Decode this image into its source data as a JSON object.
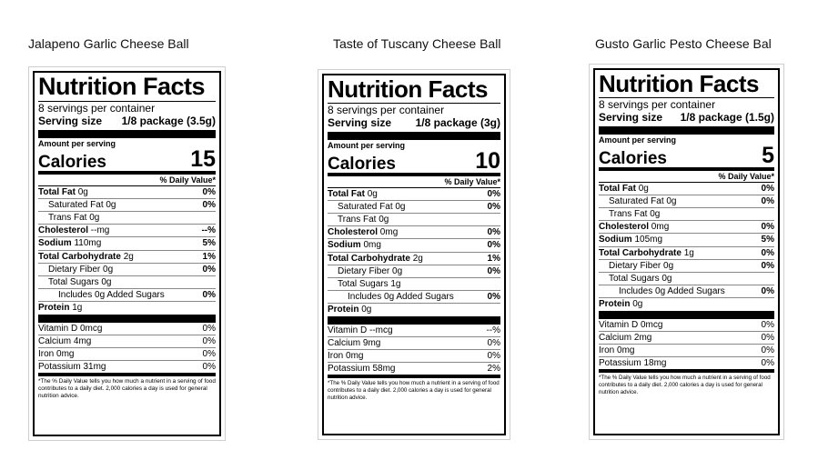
{
  "products": [
    {
      "title": "Jalapeno Garlic Cheese Ball",
      "facts_title": "Nutrition Facts",
      "servings": "8 servings per container",
      "serving_size_label": "Serving size",
      "serving_size_value": "1/8 package (3.5g)",
      "amount_per_serving": "Amount per serving",
      "calories_label": "Calories",
      "calories_value": "15",
      "dv_header": "% Daily Value*",
      "total_fat_label": "Total Fat",
      "total_fat_amount": "0g",
      "total_fat_dv": "0%",
      "sat_fat_label": "Saturated Fat",
      "sat_fat_amount": "0g",
      "sat_fat_dv": "0%",
      "trans_fat_label": "Trans Fat",
      "trans_fat_amount": "0g",
      "cholesterol_label": "Cholesterol",
      "cholesterol_amount": "--mg",
      "cholesterol_dv": "--%",
      "sodium_label": "Sodium",
      "sodium_amount": "110mg",
      "sodium_dv": "5%",
      "carb_label": "Total Carbohydrate",
      "carb_amount": "2g",
      "carb_dv": "1%",
      "fiber_label": "Dietary Fiber",
      "fiber_amount": "0g",
      "fiber_dv": "0%",
      "sugars_label": "Total Sugars",
      "sugars_amount": "0g",
      "added_sugars_label": "Includes 0g Added Sugars",
      "added_sugars_dv": "0%",
      "protein_label": "Protein",
      "protein_amount": "1g",
      "vitd_label": "Vitamin D",
      "vitd_amount": "0mcg",
      "vitd_dv": "0%",
      "calcium_label": "Calcium",
      "calcium_amount": "4mg",
      "calcium_dv": "0%",
      "iron_label": "Iron",
      "iron_amount": "0mg",
      "iron_dv": "0%",
      "potassium_label": "Potassium",
      "potassium_amount": "31mg",
      "potassium_dv": "0%",
      "footnote": "*The % Daily Value tells you how much a nutrient in a serving of food contributes to a daily diet. 2,000 calories a day is used for general nutrition advice."
    },
    {
      "title": "Taste of Tuscany Cheese Ball",
      "facts_title": "Nutrition Facts",
      "servings": "8 servings per container",
      "serving_size_label": "Serving size",
      "serving_size_value": "1/8 package (3g)",
      "amount_per_serving": "Amount per serving",
      "calories_label": "Calories",
      "calories_value": "10",
      "dv_header": "% Daily Value*",
      "total_fat_label": "Total Fat",
      "total_fat_amount": "0g",
      "total_fat_dv": "0%",
      "sat_fat_label": "Saturated Fat",
      "sat_fat_amount": "0g",
      "sat_fat_dv": "0%",
      "trans_fat_label": "Trans Fat",
      "trans_fat_amount": "0g",
      "cholesterol_label": "Cholesterol",
      "cholesterol_amount": "0mg",
      "cholesterol_dv": "0%",
      "sodium_label": "Sodium",
      "sodium_amount": "0mg",
      "sodium_dv": "0%",
      "carb_label": "Total Carbohydrate",
      "carb_amount": "2g",
      "carb_dv": "1%",
      "fiber_label": "Dietary Fiber",
      "fiber_amount": "0g",
      "fiber_dv": "0%",
      "sugars_label": "Total Sugars",
      "sugars_amount": "1g",
      "added_sugars_label": "Includes 0g Added Sugars",
      "added_sugars_dv": "0%",
      "protein_label": "Protein",
      "protein_amount": "0g",
      "vitd_label": "Vitamin D",
      "vitd_amount": "--mcg",
      "vitd_dv": "--%",
      "calcium_label": "Calcium",
      "calcium_amount": "9mg",
      "calcium_dv": "0%",
      "iron_label": "Iron",
      "iron_amount": "0mg",
      "iron_dv": "0%",
      "potassium_label": "Potassium",
      "potassium_amount": "58mg",
      "potassium_dv": "2%",
      "footnote": "*The % Daily Value tells you how much a nutrient in a serving of food contributes to a daily diet. 2,000 calories a day is used for general nutrition advice."
    },
    {
      "title": "Gusto Garlic Pesto Cheese Bal",
      "facts_title": "Nutrition Facts",
      "servings": "8 servings per container",
      "serving_size_label": "Serving size",
      "serving_size_value": "1/8 package (1.5g)",
      "amount_per_serving": "Amount per serving",
      "calories_label": "Calories",
      "calories_value": "5",
      "dv_header": "% Daily Value*",
      "total_fat_label": "Total Fat",
      "total_fat_amount": "0g",
      "total_fat_dv": "0%",
      "sat_fat_label": "Saturated Fat",
      "sat_fat_amount": "0g",
      "sat_fat_dv": "0%",
      "trans_fat_label": "Trans Fat",
      "trans_fat_amount": "0g",
      "cholesterol_label": "Cholesterol",
      "cholesterol_amount": "0mg",
      "cholesterol_dv": "0%",
      "sodium_label": "Sodium",
      "sodium_amount": "105mg",
      "sodium_dv": "5%",
      "carb_label": "Total Carbohydrate",
      "carb_amount": "1g",
      "carb_dv": "0%",
      "fiber_label": "Dietary Fiber",
      "fiber_amount": "0g",
      "fiber_dv": "0%",
      "sugars_label": "Total Sugars",
      "sugars_amount": "0g",
      "added_sugars_label": "Includes 0g Added Sugars",
      "added_sugars_dv": "0%",
      "protein_label": "Protein",
      "protein_amount": "0g",
      "vitd_label": "Vitamin D",
      "vitd_amount": "0mcg",
      "vitd_dv": "0%",
      "calcium_label": "Calcium",
      "calcium_amount": "2mg",
      "calcium_dv": "0%",
      "iron_label": "Iron",
      "iron_amount": "0mg",
      "iron_dv": "0%",
      "potassium_label": "Potassium",
      "potassium_amount": "18mg",
      "potassium_dv": "0%",
      "footnote": "*The % Daily Value tells you how much a nutrient in a serving of food contributes to a daily diet. 2,000 calories a day is used for general nutrition advice."
    }
  ]
}
